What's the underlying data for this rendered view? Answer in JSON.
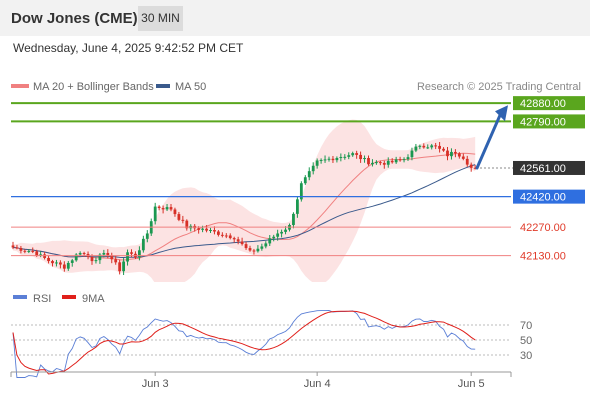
{
  "header": {
    "title": "Dow Jones (CME)",
    "timeframe": "30 MIN"
  },
  "timestamp": "Wednesday, June 4, 2025 9:42:52 PM CET",
  "legend": {
    "bollinger": "MA 20 + Bollinger Bands",
    "ma50": "MA 50",
    "credit": "Research © 2025 Trading Central"
  },
  "colors": {
    "up_candle": "#1a9850",
    "down_candle": "#d73027",
    "bollinger": "#f08080",
    "ma50": "#3a5a8c",
    "target": "#5aa61e",
    "pivot": "#2f6fe0",
    "support": "#f08080",
    "last_price": "#333333",
    "rsi": "#5b7fd6",
    "rsi_ma": "#e0201b"
  },
  "chart_data": [
    {
      "type": "candlestick",
      "instrument": "Dow Jones (CME)",
      "interval": "30 MIN",
      "ylim": [
        42000,
        42920
      ],
      "x_ticks": [
        {
          "label": "Jun 3",
          "index": 36
        },
        {
          "label": "Jun 4",
          "index": 77
        },
        {
          "label": "Jun 5",
          "index": 116
        }
      ],
      "levels": [
        {
          "value": 42880.0,
          "label": "42880.00",
          "kind": "target"
        },
        {
          "value": 42790.0,
          "label": "42790.00",
          "kind": "target"
        },
        {
          "value": 42561.0,
          "label": "42561.00",
          "kind": "last_price"
        },
        {
          "value": 42420.0,
          "label": "42420.00",
          "kind": "pivot"
        },
        {
          "value": 42270.0,
          "label": "42270.00",
          "kind": "support"
        },
        {
          "value": 42130.0,
          "label": "42130.00",
          "kind": "support"
        }
      ],
      "forecast_arrow": {
        "from_value": 42561,
        "to_value": 42845,
        "direction": "up"
      }
    },
    {
      "type": "line",
      "name": "RSI",
      "ylim": [
        10,
        90
      ],
      "y_ticks": [
        70,
        50,
        30
      ],
      "legend": [
        "RSI",
        "9MA"
      ]
    }
  ]
}
